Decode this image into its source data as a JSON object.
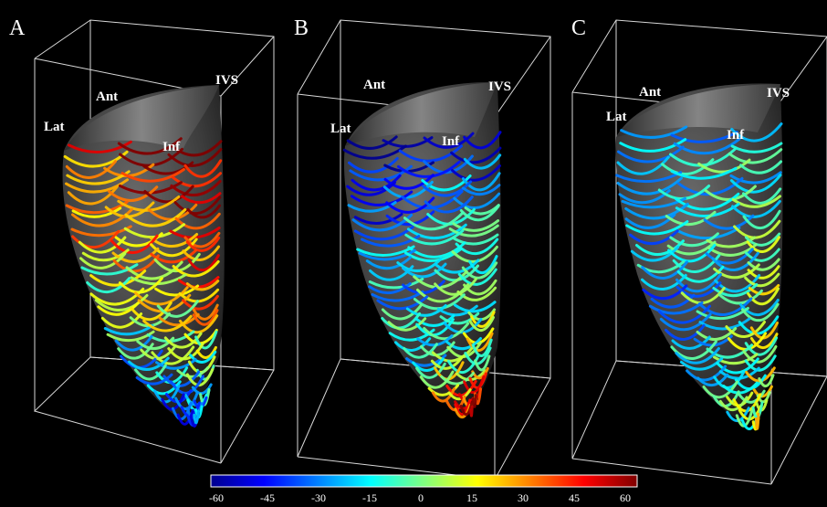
{
  "panels": [
    {
      "letter": "A",
      "labels": {
        "lat": "Lat",
        "ant": "Ant",
        "ivs": "IVS",
        "inf": "Inf"
      }
    },
    {
      "letter": "B",
      "labels": {
        "lat": "Lat",
        "ant": "Ant",
        "ivs": "IVS",
        "inf": "Inf"
      }
    },
    {
      "letter": "C",
      "labels": {
        "lat": "Lat",
        "ant": "Ant",
        "ivs": "IVS",
        "inf": "Inf"
      }
    }
  ],
  "colorbar": {
    "min": -60,
    "max": 60,
    "ticks": [
      "-60",
      "-45",
      "-30",
      "-15",
      "0",
      "15",
      "30",
      "45",
      "60"
    ],
    "colors": [
      "#00008f",
      "#0000ff",
      "#0080ff",
      "#00ffff",
      "#80ff80",
      "#ffff00",
      "#ff8000",
      "#ff0000",
      "#800000"
    ]
  }
}
